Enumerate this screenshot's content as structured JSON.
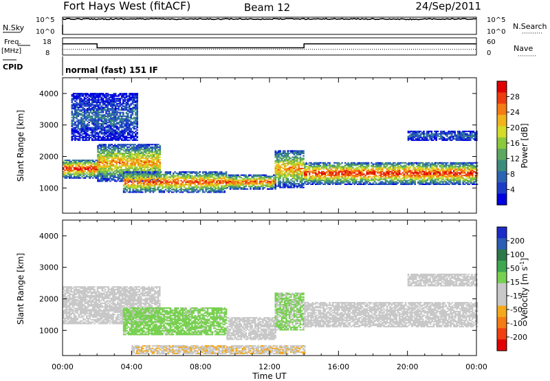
{
  "header": {
    "station": "Fort Hays West (fitACF)",
    "beam": "Beam 12",
    "date": "24/Sep/2011"
  },
  "strip_panels": {
    "nsky": {
      "label": "N.Sky",
      "ticks": [
        "10^5",
        "10^0"
      ],
      "right_label": "N.Search",
      "right_ticks": [
        "10^5",
        "10^0"
      ]
    },
    "freq": {
      "label_line1": "Freq.",
      "label_line2": "[MHz]",
      "ticks": [
        "18",
        "8"
      ],
      "right_label": "Nave",
      "right_ticks": [
        "60",
        "0"
      ]
    },
    "cpid": {
      "label": "CPID",
      "value": "normal (fast) 151 IF"
    }
  },
  "chart_data": [
    {
      "type": "line",
      "panel": "N.Sky / N.Search",
      "ylabel": "N.Sky",
      "ylabel_right": "N.Search",
      "yscale": "log",
      "ylim": [
        1,
        100000
      ],
      "x": [
        "00:00",
        "04:00",
        "08:00",
        "12:00",
        "16:00",
        "20:00",
        "00:00"
      ],
      "series": [
        {
          "name": "N.Sky",
          "values": [
            30000,
            30000,
            28000,
            30000,
            32000,
            25000,
            30000
          ]
        },
        {
          "name": "N.Search",
          "values": [
            1,
            1,
            1,
            1,
            1,
            1,
            1
          ]
        }
      ]
    },
    {
      "type": "line",
      "panel": "Freq / Nave",
      "ylabel": "Freq. [MHz]",
      "ylabel_right": "Nave",
      "ylim": [
        8,
        18
      ],
      "ylim_right": [
        0,
        60
      ],
      "x_hours": [
        0,
        2,
        2,
        14,
        14,
        24
      ],
      "series": [
        {
          "name": "Freq.",
          "values": [
            14.5,
            14.5,
            12.2,
            12.2,
            14.5,
            14.5
          ]
        },
        {
          "name": "Nave",
          "values": [
            20,
            20,
            20,
            20,
            20,
            20
          ]
        }
      ]
    },
    {
      "type": "heatmap",
      "panel": "Power",
      "ylabel": "Slant Range [km]",
      "xlabel": "",
      "xlim_hours": [
        0,
        24
      ],
      "ylim": [
        200,
        4500
      ],
      "yticks": [
        1000,
        2000,
        3000,
        4000
      ],
      "colorbar": {
        "label": "Power [dB]",
        "ticks": [
          "28",
          "24",
          "20",
          "16",
          "12",
          "8",
          "4"
        ],
        "range": [
          0,
          32
        ],
        "colors": [
          "#0000e0",
          "#1c3cc8",
          "#2c64b4",
          "#3c8c7c",
          "#5ca860",
          "#8cc83c",
          "#d4dc28",
          "#f0b41c",
          "#f47c14",
          "#ec3c10",
          "#e00000"
        ]
      },
      "echo_bands": [
        {
          "start_hour": 0.0,
          "end_hour": 2.0,
          "low_km": 1300,
          "high_km": 1900,
          "peak_db": 30
        },
        {
          "start_hour": 2.0,
          "end_hour": 5.6,
          "low_km": 1200,
          "high_km": 2400,
          "peak_db": 24
        },
        {
          "start_hour": 3.5,
          "end_hour": 9.5,
          "low_km": 850,
          "high_km": 1500,
          "peak_db": 28
        },
        {
          "start_hour": 9.5,
          "end_hour": 12.3,
          "low_km": 950,
          "high_km": 1400,
          "peak_db": 28
        },
        {
          "start_hour": 12.3,
          "end_hour": 14.0,
          "low_km": 1000,
          "high_km": 2200,
          "peak_db": 24
        },
        {
          "start_hour": 14.0,
          "end_hour": 24.0,
          "low_km": 1100,
          "high_km": 1800,
          "peak_db": 30
        },
        {
          "start_hour": 0.5,
          "end_hour": 4.3,
          "low_km": 2500,
          "high_km": 4000,
          "peak_db": 8
        },
        {
          "start_hour": 20.0,
          "end_hour": 24.0,
          "low_km": 2500,
          "high_km": 2800,
          "peak_db": 8
        }
      ]
    },
    {
      "type": "heatmap",
      "panel": "Velocity",
      "ylabel": "Slant Range [km]",
      "xlabel": "Time UT",
      "xticks": [
        "00:00",
        "04:00",
        "08:00",
        "12:00",
        "16:00",
        "20:00",
        "00:00"
      ],
      "xlim_hours": [
        0,
        24
      ],
      "ylim": [
        200,
        4500
      ],
      "yticks": [
        1000,
        2000,
        3000,
        4000
      ],
      "colorbar": {
        "label": "Velocity [m s^-1]",
        "ticks": [
          "200",
          "100",
          "50",
          "15",
          "-15",
          "-50",
          "-100",
          "-200"
        ],
        "range": [
          -250,
          250
        ],
        "colors": [
          "#e00000",
          "#f04010",
          "#f47c14",
          "#f4a81c",
          "#c8c8c8",
          "#c8c8c8",
          "#78d050",
          "#3ca850",
          "#2c7848",
          "#2c5cb4",
          "#1c2cc8"
        ]
      },
      "echo_bands": [
        {
          "start_hour": 0.0,
          "end_hour": 5.6,
          "low_km": 1200,
          "high_km": 2400,
          "velocity": 0
        },
        {
          "start_hour": 3.5,
          "end_hour": 9.5,
          "low_km": 850,
          "high_km": 1700,
          "velocity": 40
        },
        {
          "start_hour": 9.5,
          "end_hour": 12.3,
          "low_km": 700,
          "high_km": 1400,
          "velocity": -40
        },
        {
          "start_hour": 12.3,
          "end_hour": 14.0,
          "low_km": 1000,
          "high_km": 2200,
          "velocity": 30
        },
        {
          "start_hour": 14.0,
          "end_hour": 24.0,
          "low_km": 1100,
          "high_km": 1900,
          "velocity": 0
        },
        {
          "start_hour": 4.0,
          "end_hour": 14.0,
          "low_km": 250,
          "high_km": 500,
          "velocity": -60
        },
        {
          "start_hour": 20.0,
          "end_hour": 24.0,
          "low_km": 2400,
          "high_km": 2800,
          "velocity": 0
        }
      ]
    }
  ],
  "axes": {
    "time_label": "Time UT",
    "time_ticks": [
      "00:00",
      "04:00",
      "08:00",
      "12:00",
      "16:00",
      "20:00",
      "00:00"
    ],
    "range_label": "Slant Range [km]",
    "range_ticks": [
      "1000",
      "2000",
      "3000",
      "4000"
    ]
  },
  "colors": {
    "axis": "#000000",
    "background": "#ffffff",
    "ground_scatter": "#c8c8c8"
  }
}
